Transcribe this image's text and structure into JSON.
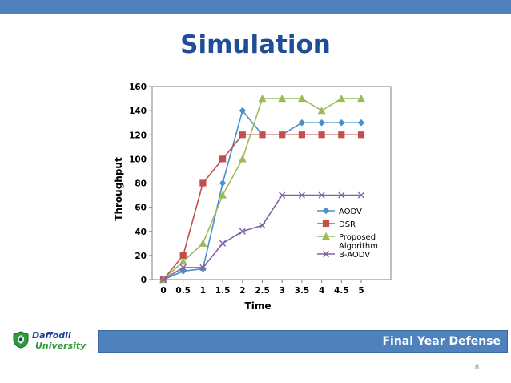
{
  "slide": {
    "title": "Simulation",
    "footer": "Final Year Defense",
    "page_number": "18",
    "logo": {
      "name_line1": "Daffodil",
      "name_line2": "University",
      "emblem_color": "#2d9b3a"
    },
    "bar_color": "#4f81bd",
    "title_color": "#1f4e96"
  },
  "chart_data": {
    "type": "line",
    "xlabel": "Time",
    "ylabel": "Throughput",
    "x": [
      0,
      0.5,
      1,
      1.5,
      2,
      2.5,
      3,
      3.5,
      4,
      4.5,
      5
    ],
    "x_tick_labels": [
      "0",
      "0.5",
      "1",
      "1.5",
      "2",
      "2.5",
      "3",
      "3.5",
      "4",
      "4.5",
      "5"
    ],
    "y_ticks": [
      0,
      20,
      40,
      60,
      80,
      100,
      120,
      140,
      160
    ],
    "xlim": [
      0,
      5
    ],
    "ylim": [
      0,
      160
    ],
    "grid": false,
    "legend_position": "bottom-right",
    "series": [
      {
        "name": "AODV",
        "color": "#4a90c8",
        "marker": "diamond",
        "values": [
          0,
          7,
          9,
          80,
          140,
          120,
          120,
          130,
          130,
          130,
          130
        ]
      },
      {
        "name": "DSR",
        "color": "#c0504d",
        "marker": "square",
        "values": [
          0,
          20,
          80,
          100,
          120,
          120,
          120,
          120,
          120,
          120,
          120
        ]
      },
      {
        "name": "Proposed Algorithm",
        "color": "#9bbb59",
        "marker": "triangle",
        "values": [
          0,
          15,
          30,
          70,
          100,
          150,
          150,
          150,
          140,
          150,
          150
        ]
      },
      {
        "name": "B-AODV",
        "color": "#8064a2",
        "marker": "x",
        "values": [
          0,
          10,
          10,
          30,
          40,
          45,
          70,
          70,
          70,
          70,
          70
        ]
      }
    ]
  }
}
